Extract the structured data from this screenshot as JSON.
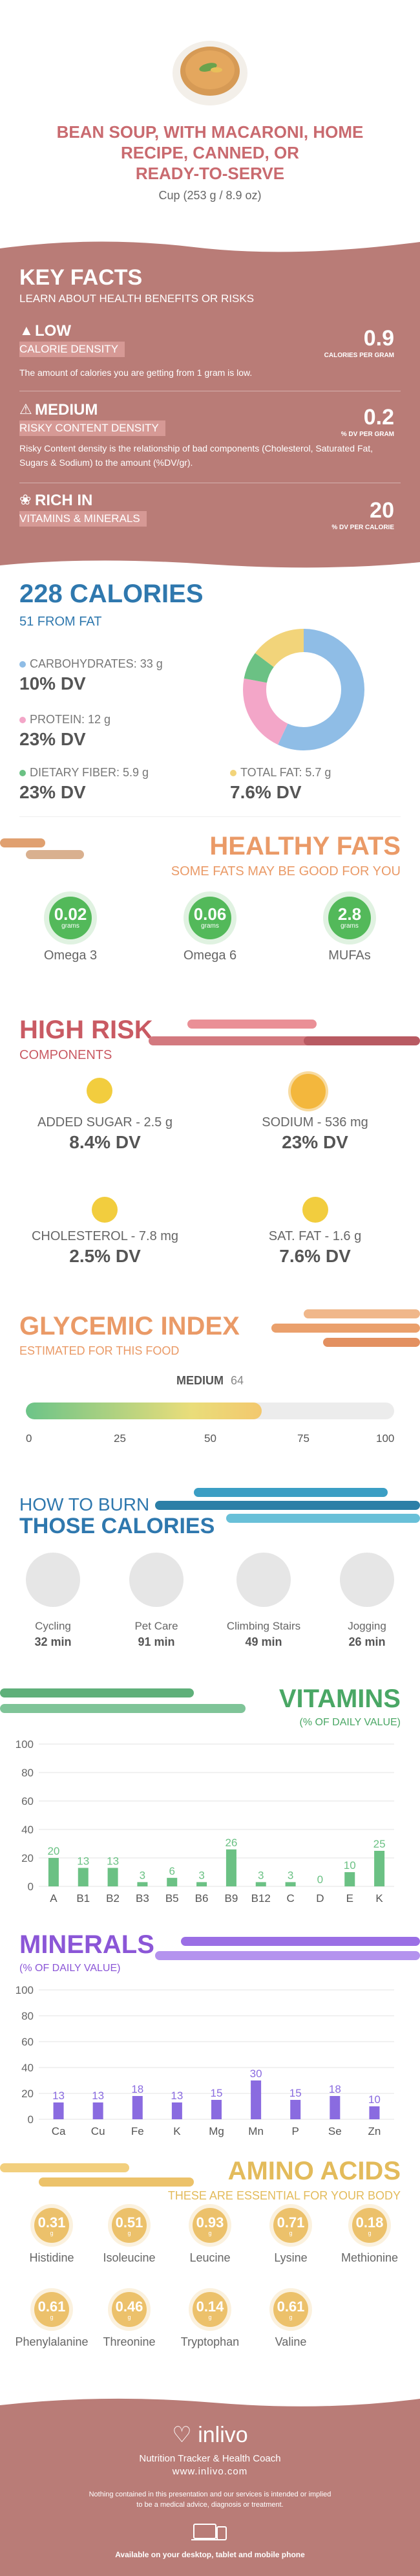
{
  "header": {
    "title_lines": [
      "BEAN SOUP, WITH MACARONI, HOME",
      "RECIPE, CANNED, OR",
      "READY-TO-SERVE"
    ],
    "serving": "Cup (253 g / 8.9 oz)"
  },
  "key_facts": {
    "title": "KEY FACTS",
    "subtitle": "LEARN ABOUT HEALTH BENEFITS OR RISKS",
    "items": [
      {
        "tag": "LOW",
        "label": "CALORIE DENSITY",
        "value": "0.9",
        "unit": "CALORIES PER GRAM",
        "desc": "The amount of calories you are getting from 1 gram is low."
      },
      {
        "tag": "MEDIUM",
        "label": "RISKY CONTENT DENSITY",
        "value": "0.2",
        "unit": "% DV PER GRAM",
        "desc": "Risky Content density is the relationship of bad components (Cholesterol, Saturated Fat, Sugars & Sodium) to the amount (%DV/gr)."
      },
      {
        "tag": "RICH IN",
        "label": "VITAMINS & MINERALS",
        "value": "20",
        "unit": "% DV PER CALORIE",
        "desc": ""
      }
    ]
  },
  "calories": {
    "title": "228 CALORIES",
    "from_fat": "51 FROM FAT",
    "carbs_label": "CARBOHYDRATES: 33 g",
    "carbs_dv": "10% DV",
    "protein_label": "PROTEIN: 12 g",
    "protein_dv": "23% DV",
    "fiber_label": "DIETARY FIBER: 5.9 g",
    "fiber_dv": "23% DV",
    "fat_label": "TOTAL FAT: 5.7 g",
    "fat_dv": "7.6% DV",
    "colors": {
      "carbs": "#8fbde6",
      "protein": "#f3a6c8",
      "fat": "#f2d47a",
      "fiber": "#6bc184"
    }
  },
  "healthy_fats": {
    "title": "HEALTHY FATS",
    "subtitle": "SOME FATS MAY BE GOOD FOR YOU",
    "items": [
      {
        "value": "0.02",
        "unit": "grams",
        "label": "Omega 3"
      },
      {
        "value": "0.06",
        "unit": "grams",
        "label": "Omega 6"
      },
      {
        "value": "2.8",
        "unit": "grams",
        "label": "MUFAs"
      }
    ]
  },
  "high_risk": {
    "title": "HIGH RISK",
    "subtitle": "COMPONENTS",
    "items": [
      {
        "label": "ADDED SUGAR - 2.5 g",
        "dv": "8.4% DV"
      },
      {
        "label": "SODIUM - 536 mg",
        "dv": "23% DV"
      },
      {
        "label": "CHOLESTEROL - 7.8 mg",
        "dv": "2.5% DV"
      },
      {
        "label": "SAT. FAT - 1.6 g",
        "dv": "7.6% DV"
      }
    ]
  },
  "glycemic": {
    "title": "GLYCEMIC INDEX",
    "subtitle": "ESTIMATED FOR THIS FOOD",
    "level": "MEDIUM",
    "value": "64",
    "ticks": [
      "0",
      "25",
      "50",
      "75",
      "100"
    ]
  },
  "burn": {
    "title_top": "HOW TO BURN",
    "title_bottom": "THOSE CALORIES",
    "items": [
      {
        "label": "Cycling",
        "time": "32 min"
      },
      {
        "label": "Pet Care",
        "time": "91 min"
      },
      {
        "label": "Climbing Stairs",
        "time": "49 min"
      },
      {
        "label": "Jogging",
        "time": "26 min"
      }
    ]
  },
  "chart_data": [
    {
      "type": "bar",
      "title": "VITAMINS",
      "subtitle": "(% OF DAILY VALUE)",
      "categories": [
        "A",
        "B1",
        "B2",
        "B3",
        "B5",
        "B6",
        "B9",
        "B12",
        "C",
        "D",
        "E",
        "K"
      ],
      "values": [
        20,
        13,
        13,
        3,
        6,
        3,
        26,
        3,
        3,
        0,
        10,
        25
      ],
      "ylim": [
        0,
        100
      ],
      "yticks": [
        0,
        20,
        40,
        60,
        80,
        100
      ],
      "color": "#6bc184"
    },
    {
      "type": "bar",
      "title": "MINERALS",
      "subtitle": "(% OF DAILY VALUE)",
      "categories": [
        "Ca",
        "Cu",
        "Fe",
        "K",
        "Mg",
        "Mn",
        "P",
        "Se",
        "Zn"
      ],
      "values": [
        13,
        13,
        18,
        13,
        15,
        30,
        15,
        18,
        10
      ],
      "ylim": [
        0,
        100
      ],
      "yticks": [
        0,
        20,
        40,
        60,
        80,
        100
      ],
      "color": "#8a6be0"
    }
  ],
  "amino": {
    "title": "AMINO ACIDS",
    "subtitle": "THESE ARE ESSENTIAL FOR YOUR BODY",
    "unit": "g",
    "items": [
      {
        "value": "0.31",
        "label": "Histidine"
      },
      {
        "value": "0.51",
        "label": "Isoleucine"
      },
      {
        "value": "0.93",
        "label": "Leucine"
      },
      {
        "value": "0.71",
        "label": "Lysine"
      },
      {
        "value": "0.18",
        "label": "Methionine"
      },
      {
        "value": "0.61",
        "label": "Phenylalanine"
      },
      {
        "value": "0.46",
        "label": "Threonine"
      },
      {
        "value": "0.14",
        "label": "Tryptophan"
      },
      {
        "value": "0.61",
        "label": "Valine"
      }
    ]
  },
  "footer": {
    "brand": "inlivo",
    "tagline": "Nutrition Tracker & Health Coach",
    "url": "www.inlivo.com",
    "disclaimer_1": "Nothing contained in this presentation and our services is intended or implied",
    "disclaimer_2": "to be a medical advice, diagnosis or treatment.",
    "available": "Available on your desktop, tablet and mobile phone"
  }
}
